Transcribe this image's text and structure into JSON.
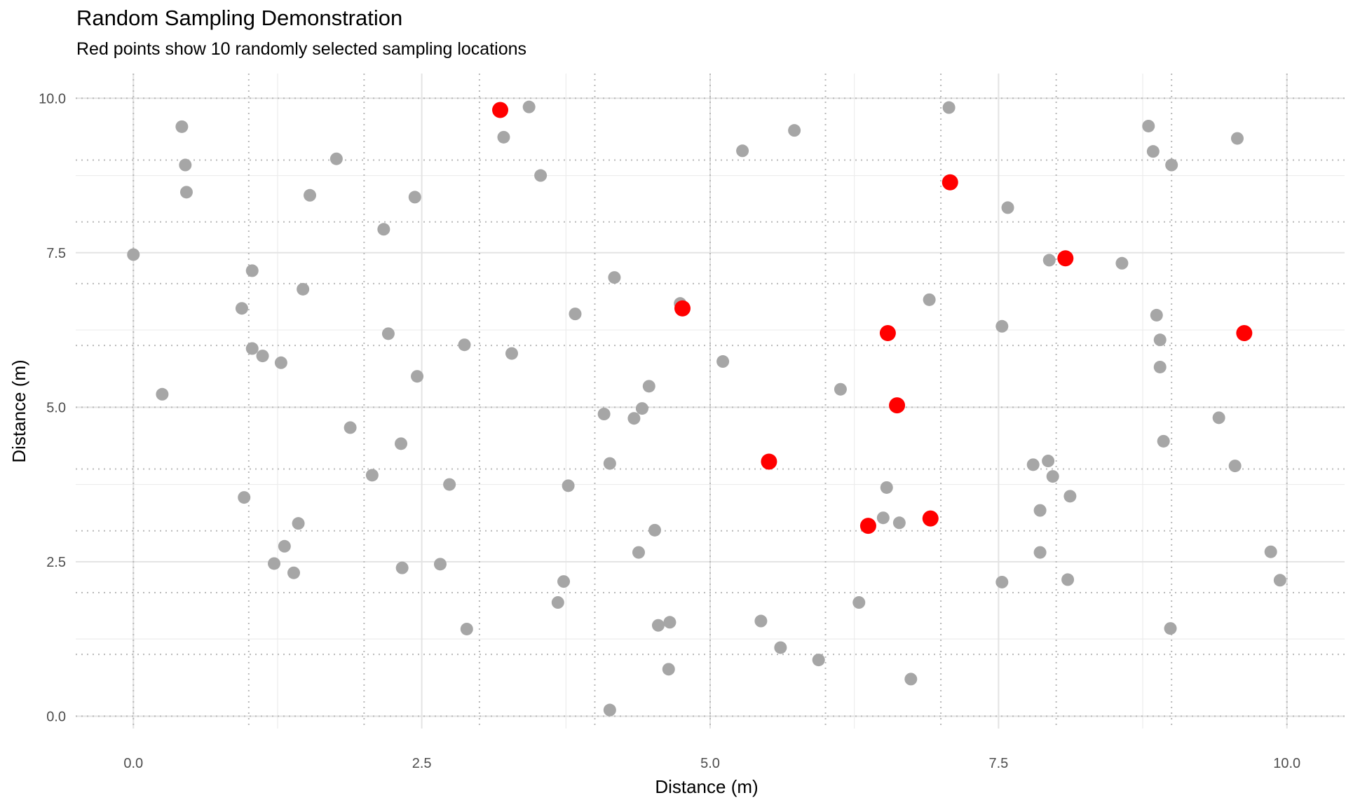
{
  "chart_data": {
    "type": "scatter",
    "title": "Random Sampling Demonstration",
    "subtitle": "Red points show 10 randomly selected sampling locations",
    "xlabel": "Distance (m)",
    "ylabel": "Distance (m)",
    "xlim": [
      -0.5,
      10.5
    ],
    "ylim": [
      -0.2,
      10.4
    ],
    "x_ticks": [
      0.0,
      2.5,
      5.0,
      7.5,
      10.0
    ],
    "x_tick_labels": [
      "0.0",
      "2.5",
      "5.0",
      "7.5",
      "10.0"
    ],
    "y_ticks": [
      0.0,
      2.5,
      5.0,
      7.5,
      10.0
    ],
    "y_tick_labels": [
      "0.0",
      "2.5",
      "5.0",
      "7.5",
      "10.0"
    ],
    "dotted_grid_x": [
      0,
      1,
      2,
      3,
      4,
      5,
      6,
      7,
      8,
      9,
      10
    ],
    "dotted_grid_y": [
      0,
      1,
      2,
      3,
      4,
      5,
      6,
      7,
      8,
      9,
      10
    ],
    "grid": true,
    "legend": "none",
    "series": [
      {
        "color": "#a6a6a6",
        "points": [
          [
            0.0,
            7.47
          ],
          [
            0.25,
            5.21
          ],
          [
            0.42,
            9.54
          ],
          [
            0.45,
            8.92
          ],
          [
            0.46,
            8.48
          ],
          [
            0.94,
            6.6
          ],
          [
            0.96,
            3.54
          ],
          [
            1.03,
            7.21
          ],
          [
            1.03,
            5.95
          ],
          [
            1.12,
            5.83
          ],
          [
            1.22,
            2.47
          ],
          [
            1.28,
            5.72
          ],
          [
            1.31,
            2.75
          ],
          [
            1.39,
            2.32
          ],
          [
            1.43,
            3.12
          ],
          [
            1.47,
            6.91
          ],
          [
            1.53,
            8.43
          ],
          [
            1.76,
            9.02
          ],
          [
            1.88,
            4.67
          ],
          [
            2.07,
            3.9
          ],
          [
            2.17,
            7.88
          ],
          [
            2.21,
            6.19
          ],
          [
            2.32,
            4.41
          ],
          [
            2.33,
            2.4
          ],
          [
            2.44,
            8.4
          ],
          [
            2.46,
            5.5
          ],
          [
            2.66,
            2.46
          ],
          [
            2.74,
            3.75
          ],
          [
            2.87,
            6.01
          ],
          [
            2.89,
            1.41
          ],
          [
            3.21,
            9.37
          ],
          [
            3.28,
            5.87
          ],
          [
            3.43,
            9.86
          ],
          [
            3.53,
            8.75
          ],
          [
            3.68,
            1.84
          ],
          [
            3.73,
            2.18
          ],
          [
            3.77,
            3.73
          ],
          [
            3.83,
            6.51
          ],
          [
            4.08,
            4.89
          ],
          [
            4.13,
            4.09
          ],
          [
            4.13,
            0.1
          ],
          [
            4.17,
            7.1
          ],
          [
            4.34,
            4.82
          ],
          [
            4.38,
            2.65
          ],
          [
            4.41,
            4.98
          ],
          [
            4.47,
            5.34
          ],
          [
            4.52,
            3.01
          ],
          [
            4.55,
            1.47
          ],
          [
            4.65,
            1.52
          ],
          [
            4.64,
            0.76
          ],
          [
            4.74,
            6.68
          ],
          [
            5.11,
            5.74
          ],
          [
            5.28,
            9.15
          ],
          [
            5.44,
            1.54
          ],
          [
            5.61,
            1.11
          ],
          [
            5.73,
            9.48
          ],
          [
            5.94,
            0.91
          ],
          [
            6.13,
            5.29
          ],
          [
            6.29,
            1.84
          ],
          [
            6.5,
            3.21
          ],
          [
            6.53,
            3.7
          ],
          [
            6.64,
            3.13
          ],
          [
            6.74,
            0.6
          ],
          [
            6.9,
            6.74
          ],
          [
            7.07,
            9.85
          ],
          [
            7.53,
            6.31
          ],
          [
            7.53,
            2.17
          ],
          [
            7.58,
            8.23
          ],
          [
            7.8,
            4.07
          ],
          [
            7.86,
            3.33
          ],
          [
            7.86,
            2.65
          ],
          [
            7.93,
            4.13
          ],
          [
            7.94,
            7.38
          ],
          [
            7.97,
            3.88
          ],
          [
            8.1,
            2.21
          ],
          [
            8.12,
            3.56
          ],
          [
            8.57,
            7.33
          ],
          [
            8.8,
            9.55
          ],
          [
            8.84,
            9.14
          ],
          [
            8.87,
            6.49
          ],
          [
            8.9,
            6.09
          ],
          [
            8.9,
            5.65
          ],
          [
            8.93,
            4.45
          ],
          [
            8.99,
            1.42
          ],
          [
            9.0,
            8.92
          ],
          [
            9.41,
            4.83
          ],
          [
            9.55,
            4.05
          ],
          [
            9.57,
            9.35
          ],
          [
            9.86,
            2.66
          ],
          [
            9.94,
            2.2
          ]
        ]
      },
      {
        "color": "#ff0000",
        "points": [
          [
            3.18,
            9.81
          ],
          [
            4.76,
            6.6
          ],
          [
            5.51,
            4.12
          ],
          [
            6.37,
            3.08
          ],
          [
            6.54,
            6.2
          ],
          [
            6.62,
            5.03
          ],
          [
            6.91,
            3.2
          ],
          [
            7.08,
            8.64
          ],
          [
            8.08,
            7.41
          ],
          [
            9.63,
            6.2
          ]
        ]
      }
    ]
  }
}
